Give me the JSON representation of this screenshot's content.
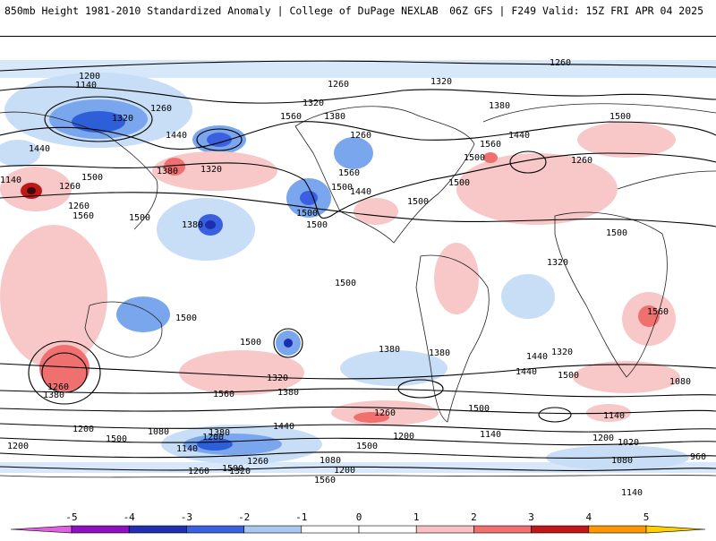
{
  "header": {
    "title": "850mb Height 1981-2010 Standardized Anomaly | College of DuPage NEXLAB",
    "valid": "06Z GFS | F249 Valid: 15Z FRI APR 04 2025"
  },
  "colorbar": {
    "ticks": [
      "-5",
      "-4",
      "-3",
      "-2",
      "-1",
      "0",
      "1",
      "2",
      "3",
      "4",
      "5"
    ],
    "colors": [
      "#e060e0",
      "#9010c0",
      "#2030b0",
      "#3a60e0",
      "#a8c8f0",
      "#ffffff",
      "#ffffff",
      "#f8c0c0",
      "#f07070",
      "#c01818",
      "#ff9800",
      "#ffd000"
    ]
  },
  "contour_labels": [
    "1200",
    "1140",
    "1260",
    "1320",
    "1260",
    "1320",
    "1260",
    "1380",
    "1440",
    "1500",
    "1380",
    "1560",
    "1440",
    "1320",
    "1380",
    "1260",
    "1440",
    "1500",
    "1560",
    "1500",
    "1560",
    "1500",
    "1500",
    "1320",
    "1260",
    "1500",
    "1560",
    "1500",
    "1380",
    "1500",
    "1500",
    "1500",
    "1500",
    "1500",
    "1560",
    "1500",
    "1440",
    "1380",
    "1320",
    "1260",
    "1320",
    "1440",
    "1500",
    "1380",
    "1260",
    "1200",
    "1140",
    "1080",
    "1140",
    "1200",
    "1020",
    "1080",
    "960",
    "1140",
    "1080",
    "1200",
    "1260",
    "1320",
    "1380",
    "1440",
    "1380",
    "1320",
    "1260",
    "1200",
    "1140",
    "1080",
    "1200",
    "1260",
    "1380",
    "1200",
    "1140",
    "1260",
    "1500",
    "1560",
    "1500",
    "1500",
    "1560",
    "1440",
    "1500"
  ]
}
